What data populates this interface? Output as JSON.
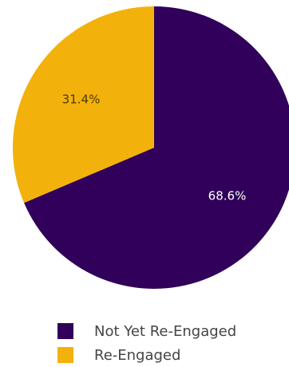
{
  "chart_data": {
    "type": "pie",
    "title": "",
    "series": [
      {
        "name": "Not Yet Re-Engaged",
        "value": 68.6,
        "label": "68.6%",
        "color": "#30005a",
        "label_color": "#ffffff"
      },
      {
        "name": "Re-Engaged",
        "value": 31.4,
        "label": "31.4%",
        "color": "#f3b10b",
        "label_color": "#4a3a06"
      }
    ],
    "start_angle": "top",
    "direction": "clockwise",
    "legend_position": "bottom-left"
  }
}
